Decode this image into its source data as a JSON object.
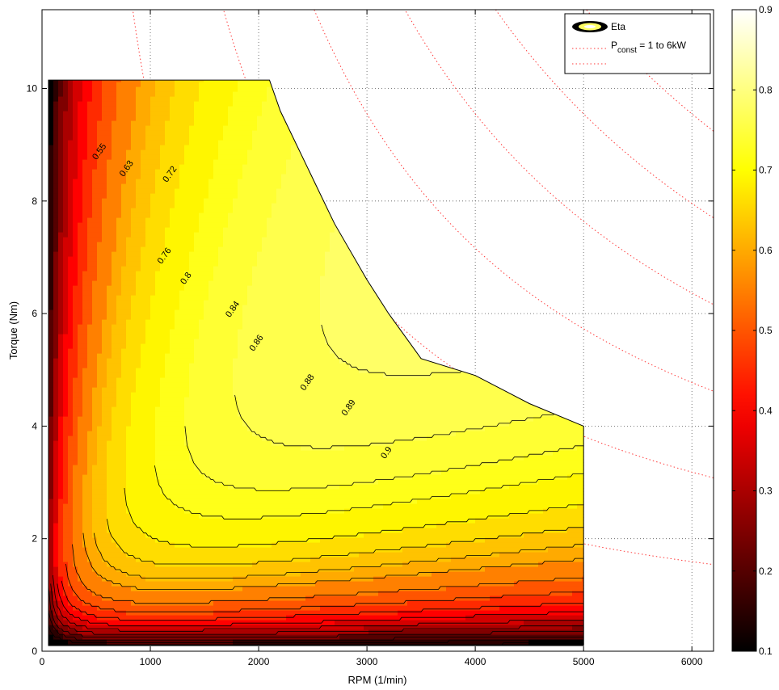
{
  "chart_data": {
    "type": "contour",
    "title": "",
    "xlabel": "RPM (1/min)",
    "ylabel": "Torque (Nm)",
    "xlim": [
      0,
      6200
    ],
    "ylim": [
      0,
      11.4
    ],
    "xticks": [
      0,
      1000,
      2000,
      3000,
      4000,
      5000,
      6000
    ],
    "yticks": [
      0,
      2,
      4,
      6,
      8,
      10
    ],
    "grid": true,
    "grid_style": "dotted",
    "legend_position": "top-right",
    "legend": {
      "eta_label": "Eta",
      "pconst_main": "P",
      "pconst_sub": "const",
      "pconst_rest": " = 1 to 6kW"
    },
    "operating_envelope": [
      [
        60,
        10.15
      ],
      [
        2100,
        10.15
      ],
      [
        2200,
        9.6
      ],
      [
        2700,
        7.6
      ],
      [
        3000,
        6.6
      ],
      [
        3200,
        6.0
      ],
      [
        3500,
        5.2
      ],
      [
        4000,
        4.9
      ],
      [
        4500,
        4.4
      ],
      [
        5000,
        4.0
      ],
      [
        5000,
        0.1
      ],
      [
        60,
        0.1
      ]
    ],
    "efficiency_levels": [
      0.1,
      0.15,
      0.2,
      0.25,
      0.3,
      0.35,
      0.4,
      0.45,
      0.5,
      0.55,
      0.6,
      0.63,
      0.66,
      0.69,
      0.72,
      0.74,
      0.76,
      0.78,
      0.8,
      0.82,
      0.84,
      0.86,
      0.88,
      0.89,
      0.9
    ],
    "contour_labels": [
      {
        "text": "0.55",
        "x": 550,
        "y": 8.85
      },
      {
        "text": "0.63",
        "x": 800,
        "y": 8.55
      },
      {
        "text": "0.72",
        "x": 1200,
        "y": 8.45
      },
      {
        "text": "0.76",
        "x": 1150,
        "y": 7.0
      },
      {
        "text": "0.8",
        "x": 1350,
        "y": 6.6
      },
      {
        "text": "0.84",
        "x": 1780,
        "y": 6.05
      },
      {
        "text": "0.86",
        "x": 2000,
        "y": 5.45
      },
      {
        "text": "0.88",
        "x": 2470,
        "y": 4.75
      },
      {
        "text": "0.89",
        "x": 2850,
        "y": 4.3
      },
      {
        "text": "0.9",
        "x": 3200,
        "y": 3.5
      }
    ],
    "power_lines_kW": [
      1,
      2,
      3,
      4,
      5,
      6
    ],
    "colorbar": {
      "colormap": "hot",
      "range": [
        0.1,
        0.9
      ],
      "ticks": [
        0.1,
        0.2,
        0.3,
        0.4,
        0.5,
        0.6,
        0.7,
        0.8,
        0.9
      ],
      "tick_labels": [
        "0.1",
        "0.2",
        "0.3",
        "0.4",
        "0.5",
        "0.6",
        "0.7",
        "0.8",
        "0.9"
      ]
    }
  }
}
